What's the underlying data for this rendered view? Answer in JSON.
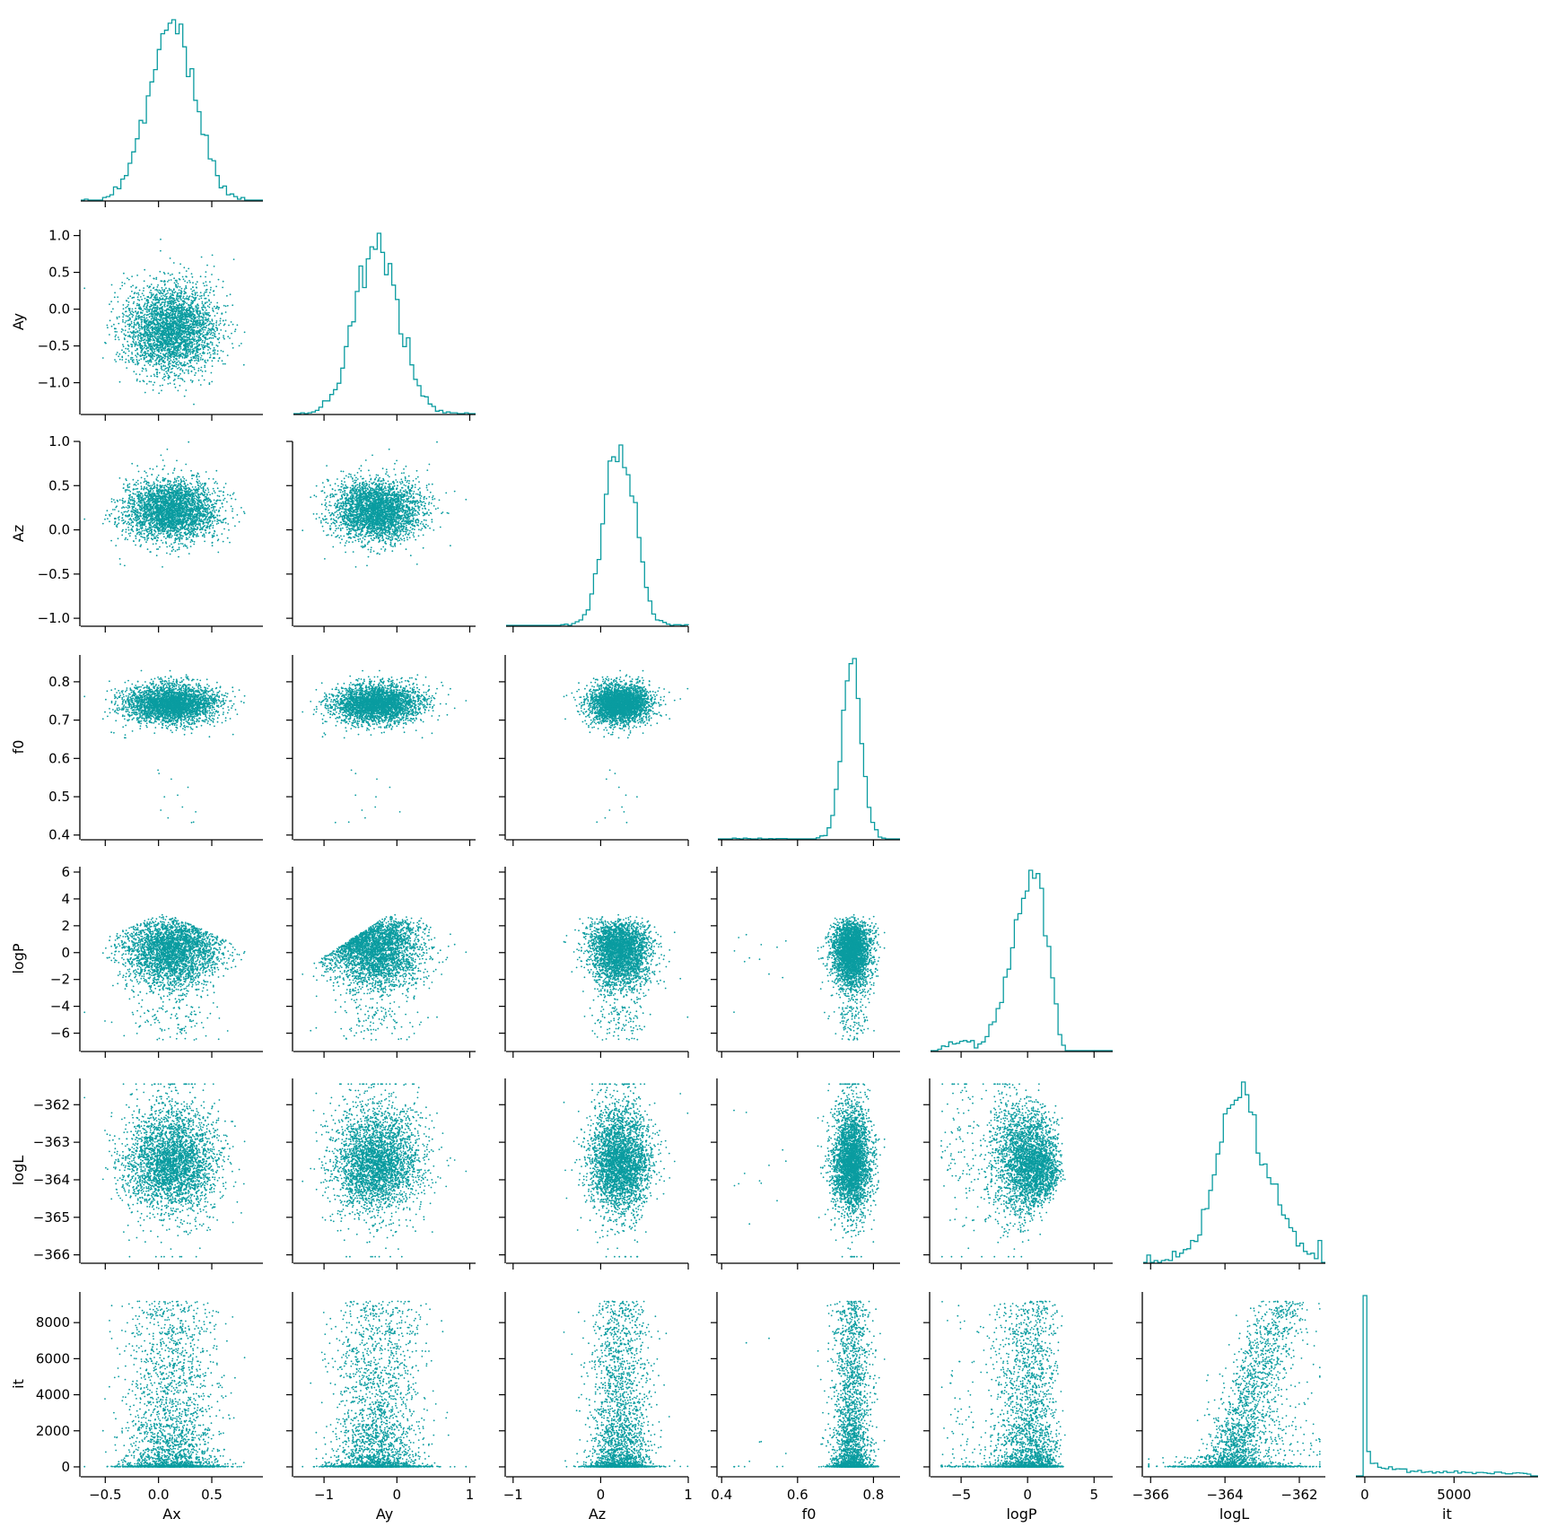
{
  "chart_data": {
    "type": "scatter",
    "kind": "corner-plot",
    "color": "#0a9ca0",
    "variables": [
      {
        "name": "Ax",
        "label": "Ax",
        "lim": [
          -0.73,
          0.98
        ],
        "ticks": [
          -0.5,
          0.0,
          0.5
        ],
        "tick_labels": [
          "−0.5",
          "0.0",
          "0.5"
        ],
        "mean": 0.12,
        "sd": 0.22
      },
      {
        "name": "Ay",
        "label": "Ay",
        "lim": [
          -1.42,
          1.08
        ],
        "ticks": [
          -1.0,
          -0.5,
          0.0,
          0.5,
          1.0
        ],
        "tick_labels": [
          "−1.0",
          "−0.5",
          "0.0",
          "0.5",
          "1.0"
        ],
        "x_tick_labels": [
          "−1",
          "0",
          "1"
        ],
        "x_ticks": [
          -1,
          0,
          1
        ],
        "mean": -0.28,
        "sd": 0.3
      },
      {
        "name": "Az",
        "label": "Az",
        "lim": [
          -1.08,
          1.0
        ],
        "ticks": [
          -1.0,
          -0.5,
          0.0,
          0.5,
          1.0
        ],
        "tick_labels": [
          "−1.0",
          "−0.5",
          "0.0",
          "0.5",
          "1.0"
        ],
        "x_tick_labels": [
          "−1",
          "0",
          "1"
        ],
        "x_ticks": [
          -1,
          0,
          1
        ],
        "mean": 0.22,
        "sd": 0.17
      },
      {
        "name": "f0",
        "label": "f0",
        "lim": [
          0.39,
          0.87
        ],
        "ticks": [
          0.4,
          0.5,
          0.6,
          0.7,
          0.8
        ],
        "tick_labels": [
          "0.4",
          "0.5",
          "0.6",
          "0.7",
          "0.8"
        ],
        "x_tick_labels": [
          "0.4",
          "0.6",
          "0.8"
        ],
        "x_ticks": [
          0.4,
          0.6,
          0.8
        ],
        "mean": 0.742,
        "sd": 0.025
      },
      {
        "name": "logP",
        "label": "logP",
        "lim": [
          -7.3,
          6.4
        ],
        "ticks": [
          -6,
          -4,
          -2,
          0,
          2,
          4,
          6
        ],
        "tick_labels": [
          "−6",
          "−4",
          "−2",
          "0",
          "2",
          "4",
          "6"
        ],
        "x_tick_labels": [
          "−5",
          "0",
          "5"
        ],
        "x_ticks": [
          -5,
          0,
          5
        ],
        "mean": 0.3,
        "sd": 1.6
      },
      {
        "name": "logL",
        "label": "logL",
        "lim": [
          -366.2,
          -361.3
        ],
        "ticks": [
          -366,
          -365,
          -364,
          -363,
          -362
        ],
        "tick_labels": [
          "−366",
          "−365",
          "−364",
          "−363",
          "−362"
        ],
        "x_tick_labels": [
          "−366",
          "−364",
          "−362"
        ],
        "x_ticks": [
          -366,
          -364,
          -362
        ],
        "mean": -363.8,
        "sd": 0.45
      },
      {
        "name": "it",
        "label": "it",
        "lim": [
          -500,
          9700
        ],
        "ticks": [
          0,
          2000,
          4000,
          6000,
          8000
        ],
        "tick_labels": [
          "0",
          "2000",
          "4000",
          "6000",
          "8000"
        ],
        "x_tick_labels": [
          "0",
          "5000"
        ],
        "x_ticks": [
          0,
          5000
        ],
        "max": 9200
      }
    ],
    "n_samples": 3200,
    "bins": 50,
    "grid": false,
    "legend": "none"
  }
}
